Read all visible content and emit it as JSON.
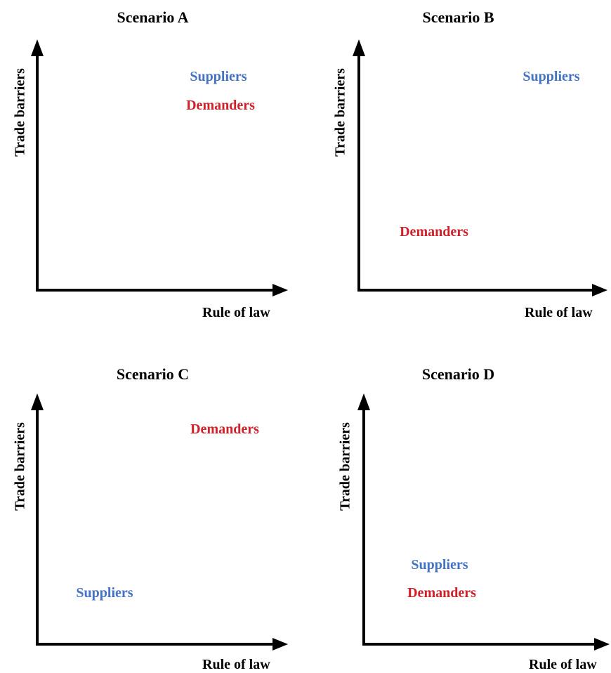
{
  "labels": {
    "y_axis": "Trade barriers",
    "x_axis": "Rule of law",
    "suppliers": "Suppliers",
    "demanders": "Demanders"
  },
  "colors": {
    "suppliers": "#4472C4",
    "demanders": "#D0202A",
    "axes": "#000000"
  },
  "scenarios": [
    {
      "title": "Scenario A"
    },
    {
      "title": "Scenario B"
    },
    {
      "title": "Scenario C"
    },
    {
      "title": "Scenario D"
    }
  ]
}
